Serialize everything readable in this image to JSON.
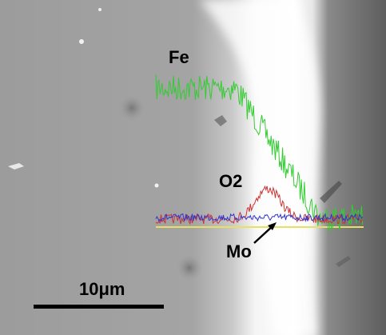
{
  "labels": {
    "fe": "Fe",
    "o2": "O2",
    "mo": "Mo"
  },
  "scale_bar": {
    "label": "10μm"
  }
}
